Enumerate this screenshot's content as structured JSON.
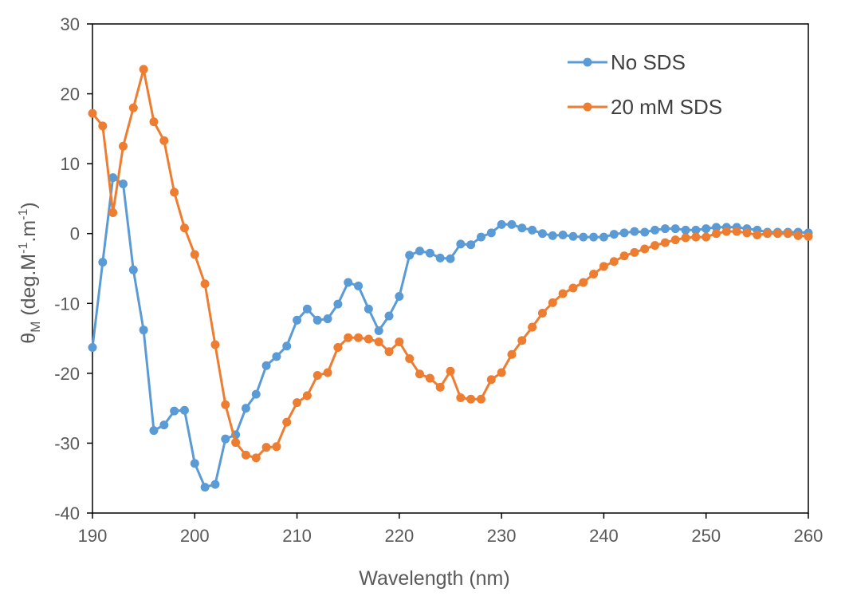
{
  "chart_data": {
    "type": "line",
    "title": "",
    "xlabel": "Wavelength (nm)",
    "ylabel": {
      "symbol": "θ",
      "subscript": "M",
      "units_start": " (deg.M",
      "exp1": "-1",
      "units_mid": ".m",
      "exp2": "-1",
      "units_end": ")"
    },
    "xlim": [
      190,
      260
    ],
    "ylim": [
      -40,
      30
    ],
    "xticks": [
      190,
      200,
      210,
      220,
      230,
      240,
      250,
      260
    ],
    "yticks": [
      -40,
      -30,
      -20,
      -10,
      0,
      10,
      20,
      30
    ],
    "grid": false,
    "legend_position": "top-right",
    "x": [
      190,
      191,
      192,
      193,
      194,
      195,
      196,
      197,
      198,
      199,
      200,
      201,
      202,
      203,
      204,
      205,
      206,
      207,
      208,
      209,
      210,
      211,
      212,
      213,
      214,
      215,
      216,
      217,
      218,
      219,
      220,
      221,
      222,
      223,
      224,
      225,
      226,
      227,
      228,
      229,
      230,
      231,
      232,
      233,
      234,
      235,
      236,
      237,
      238,
      239,
      240,
      241,
      242,
      243,
      244,
      245,
      246,
      247,
      248,
      249,
      250,
      251,
      252,
      253,
      254,
      255,
      256,
      257,
      258,
      259,
      260
    ],
    "series": [
      {
        "name": "No SDS",
        "color": "#5B9BD5",
        "values": [
          -16.3,
          -4.1,
          8.0,
          7.1,
          -5.2,
          -13.8,
          -28.2,
          -27.4,
          -25.4,
          -25.3,
          -32.9,
          -36.3,
          -35.9,
          -29.4,
          -28.8,
          -25.0,
          -23.0,
          -18.9,
          -17.6,
          -16.1,
          -12.4,
          -10.8,
          -12.4,
          -12.2,
          -10.1,
          -7.0,
          -7.5,
          -10.8,
          -13.9,
          -11.8,
          -9.0,
          -3.1,
          -2.5,
          -2.8,
          -3.5,
          -3.6,
          -1.5,
          -1.6,
          -0.5,
          0.1,
          1.3,
          1.3,
          0.8,
          0.5,
          0.0,
          -0.3,
          -0.2,
          -0.4,
          -0.5,
          -0.5,
          -0.5,
          -0.1,
          0.1,
          0.3,
          0.2,
          0.5,
          0.7,
          0.7,
          0.5,
          0.5,
          0.7,
          0.9,
          0.9,
          0.9,
          0.7,
          0.5,
          0.2,
          0.2,
          0.2,
          0.2,
          0.1
        ]
      },
      {
        "name": "20 mM SDS",
        "color": "#ED7D31",
        "values": [
          17.2,
          15.4,
          3.0,
          12.5,
          18.0,
          23.5,
          16.0,
          13.3,
          5.9,
          0.8,
          -3.0,
          -7.2,
          -15.9,
          -24.5,
          -29.9,
          -31.7,
          -32.1,
          -30.6,
          -30.5,
          -27.0,
          -24.2,
          -23.2,
          -20.3,
          -19.9,
          -16.3,
          -14.9,
          -14.9,
          -15.1,
          -15.5,
          -16.9,
          -15.5,
          -17.9,
          -20.1,
          -20.7,
          -22.0,
          -19.7,
          -23.5,
          -23.7,
          -23.7,
          -20.9,
          -19.9,
          -17.3,
          -15.3,
          -13.4,
          -11.4,
          -9.9,
          -8.6,
          -7.8,
          -7.0,
          -5.8,
          -4.7,
          -4.0,
          -3.2,
          -2.7,
          -2.2,
          -1.7,
          -1.3,
          -0.9,
          -0.6,
          -0.5,
          -0.5,
          0.0,
          0.3,
          0.3,
          0.1,
          -0.2,
          0.0,
          0.0,
          0.0,
          -0.3,
          -0.4
        ]
      }
    ]
  }
}
